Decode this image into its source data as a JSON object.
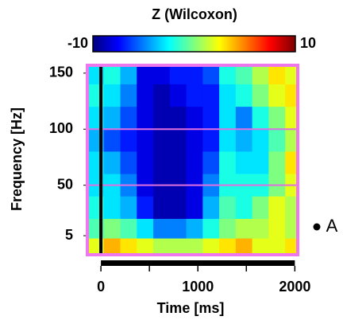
{
  "chart_data": {
    "type": "heatmap",
    "title": "Z (Wilcoxon)",
    "x_label": "Time [ms]",
    "y_label": "Frequency [Hz]",
    "x": [
      -55,
      115,
      285,
      455,
      625,
      795,
      965,
      1135,
      1305,
      1475,
      1645,
      1815,
      1985
    ],
    "y": [
      150,
      130,
      110,
      90,
      70,
      50,
      30,
      10,
      -5
    ],
    "z": [
      [
        -3,
        -2,
        -4,
        -8,
        -8,
        -7,
        -7,
        -6,
        -2,
        -1,
        1,
        3,
        2
      ],
      [
        -2,
        -3,
        -5,
        -8,
        -9,
        -8,
        -7,
        -7,
        -3,
        -2,
        0,
        2,
        3
      ],
      [
        -3,
        -4,
        -6,
        -8,
        -9,
        -9,
        -8,
        -7,
        -3,
        -5,
        -2,
        0,
        2
      ],
      [
        -4,
        -6,
        -7,
        -8,
        -9,
        -9,
        -8,
        -7,
        -3,
        -4,
        -3,
        -1,
        1
      ],
      [
        -3,
        -4,
        -6,
        -8,
        -9,
        -9,
        -8,
        -6,
        -2,
        -3,
        -3,
        0,
        3
      ],
      [
        -3,
        -3,
        -5,
        -8,
        -9,
        -9,
        -8,
        -5,
        -2,
        -2,
        -2,
        0,
        2
      ],
      [
        -2,
        -3,
        -4,
        -7,
        -9,
        -9,
        -8,
        -4,
        -1,
        -2,
        0,
        2,
        1
      ],
      [
        -1,
        0,
        -1,
        -3,
        -5,
        -5,
        -4,
        -2,
        0,
        1,
        1,
        2,
        1
      ],
      [
        2,
        4,
        3,
        2,
        1,
        1,
        1,
        2,
        3,
        4,
        2,
        2,
        3
      ]
    ],
    "xlim": [
      -140,
      2030
    ],
    "ylim": [
      -12,
      157
    ],
    "xticks": [
      0,
      500,
      1000,
      1500,
      2000
    ],
    "xtick_labels_at": [
      0,
      1000,
      2000
    ],
    "yticks": [
      150,
      100,
      50,
      5
    ],
    "clim": [
      -10,
      10
    ],
    "cticks": [
      -10,
      10
    ],
    "colormap": [
      "#00007f",
      "#0000ff",
      "#007fff",
      "#00ffff",
      "#7fff7f",
      "#ffff00",
      "#ff7f00",
      "#ff0000",
      "#7f0000"
    ],
    "hlines": [
      100,
      50
    ],
    "hline_color": "#e070e0",
    "vline": 0,
    "vline_color": "#000000",
    "frame_color": "#ee77ee",
    "annotation": "A"
  }
}
